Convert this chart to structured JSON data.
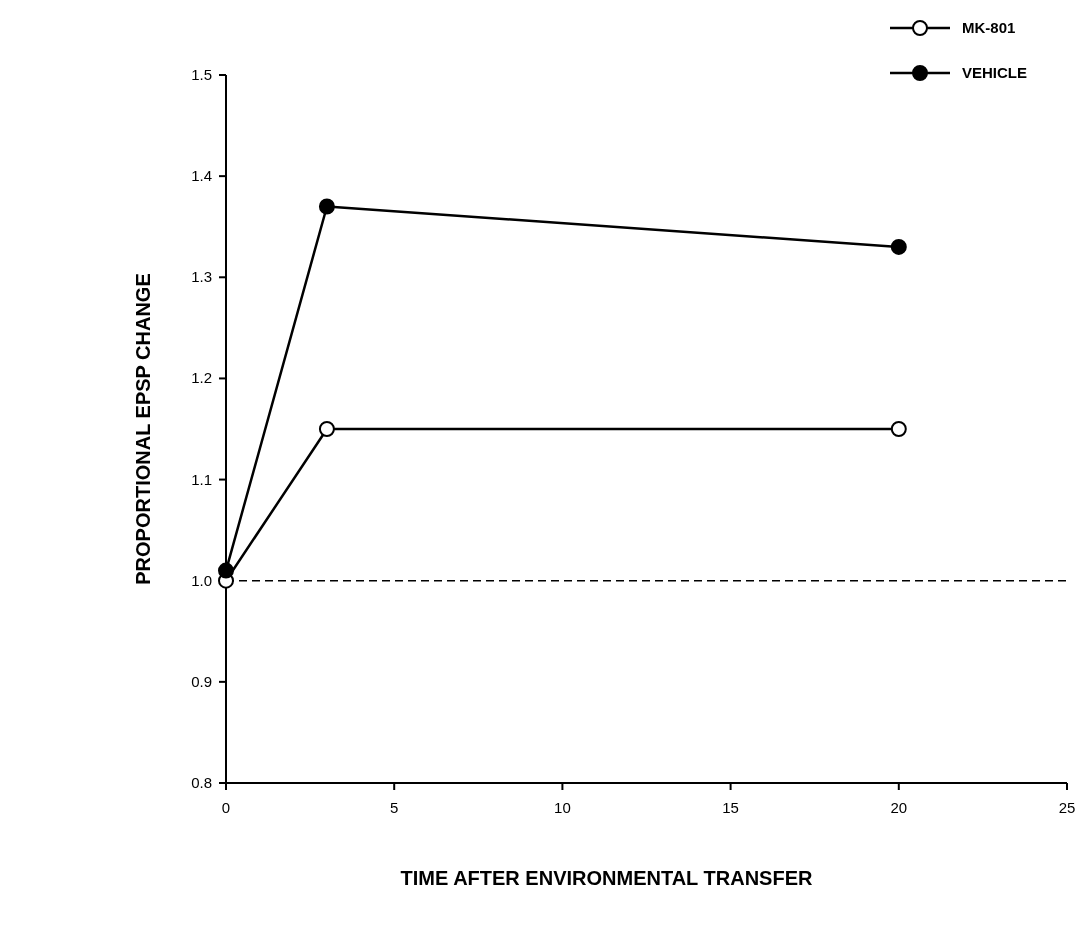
{
  "chart_data": {
    "type": "line",
    "xlabel": "TIME AFTER ENVIRONMENTAL TRANSFER",
    "ylabel": "PROPORTIONAL EPSP CHANGE",
    "xlim": [
      0,
      25
    ],
    "xticks": [
      0,
      5,
      10,
      15,
      20,
      25
    ],
    "ylim": [
      0.8,
      1.5
    ],
    "yticks": [
      0.8,
      0.9,
      {
        "value": 1,
        "label": "1.0"
      },
      1.1,
      1.2,
      1.3,
      1.4,
      1.5
    ],
    "series": [
      {
        "name": "MK-801",
        "color": "#000000",
        "marker": "open circle",
        "x": [
          0,
          3,
          20
        ],
        "values": [
          1.0,
          1.15,
          1.15
        ]
      },
      {
        "name": "VEHICLE",
        "color": "#000000",
        "marker": "circle",
        "x": [
          0,
          3,
          20
        ],
        "values": [
          1.01,
          1.37,
          1.33
        ]
      }
    ],
    "ref_lines": [
      {
        "axis": "y",
        "value": 1,
        "line_style": "dashed",
        "color": "#000000"
      }
    ],
    "line_style": "solid",
    "grid": false,
    "legend": "top right"
  }
}
